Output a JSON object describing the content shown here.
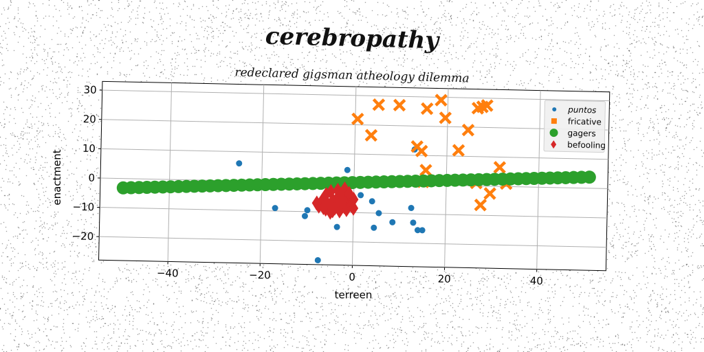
{
  "chart_data": {
    "type": "scatter",
    "title": "cerebropathy",
    "subtitle": "redeclared gigsman atheology dilemma",
    "xlabel": "terreen",
    "ylabel": "enactment",
    "xlim": [
      -55,
      55
    ],
    "ylim": [
      -28,
      33
    ],
    "xticks": [
      -40,
      -20,
      0,
      20,
      40
    ],
    "yticks": [
      -20,
      -10,
      0,
      10,
      20,
      30
    ],
    "grid": true,
    "legend_position": "top-right",
    "series": [
      {
        "name": "puntos",
        "marker": "circle",
        "color": "#1f77b4",
        "points": [
          [
            -25,
            6
          ],
          [
            -17,
            -9
          ],
          [
            -10,
            -9.5
          ],
          [
            -10.5,
            -11.5
          ],
          [
            -7.5,
            -26.5
          ],
          [
            -3.5,
            -15
          ],
          [
            -1.5,
            4.5
          ],
          [
            -0.5,
            -5
          ],
          [
            1.5,
            -4
          ],
          [
            4,
            -6
          ],
          [
            4.5,
            -15
          ],
          [
            5.5,
            -10
          ],
          [
            8.5,
            -13
          ],
          [
            12.5,
            -8
          ],
          [
            13,
            -13
          ],
          [
            13,
            12
          ],
          [
            14,
            -15.5
          ],
          [
            15,
            -15.5
          ]
        ]
      },
      {
        "name": "fricative",
        "marker": "x",
        "color": "#ff7f0e",
        "points": [
          [
            0.5,
            22
          ],
          [
            3.5,
            16.5
          ],
          [
            5,
            27
          ],
          [
            9.5,
            27
          ],
          [
            13.5,
            13
          ],
          [
            14.5,
            11.5
          ],
          [
            15.5,
            26
          ],
          [
            15.5,
            5
          ],
          [
            15,
            1
          ],
          [
            18.5,
            29
          ],
          [
            19.5,
            23
          ],
          [
            22.5,
            12
          ],
          [
            24.5,
            19
          ],
          [
            26.5,
            26.5
          ],
          [
            26.5,
            1
          ],
          [
            27.5,
            27
          ],
          [
            27.5,
            -6.5
          ],
          [
            28.5,
            27.5
          ],
          [
            29.5,
            -2.5
          ],
          [
            31.5,
            6.5
          ],
          [
            33,
            1
          ]
        ]
      },
      {
        "name": "gagers",
        "marker": "circle-large",
        "color": "#2ca02c",
        "line": {
          "x_start": -50,
          "x_end": 51,
          "y_start": -3.2,
          "y_end": 3.8,
          "count": 60
        }
      },
      {
        "name": "befooling",
        "marker": "diamond",
        "color": "#d62728",
        "points": [
          [
            -7.5,
            -8
          ],
          [
            -7,
            -6.5
          ],
          [
            -6.5,
            -5.5
          ],
          [
            -6,
            -9
          ],
          [
            -6,
            -4
          ],
          [
            -5.5,
            -7.5
          ],
          [
            -5,
            -3
          ],
          [
            -5,
            -10
          ],
          [
            -4.5,
            -6
          ],
          [
            -4,
            -8.5
          ],
          [
            -3.5,
            -5
          ],
          [
            -3.5,
            -2.5
          ],
          [
            -3,
            -9.5
          ],
          [
            -3,
            -7
          ],
          [
            -2.5,
            -4.5
          ],
          [
            -2,
            -8
          ],
          [
            -2,
            -2
          ],
          [
            -1.5,
            -6
          ],
          [
            -1.5,
            -9
          ],
          [
            -1,
            -4
          ],
          [
            -1,
            -3.5
          ],
          [
            -0.5,
            -7.5
          ],
          [
            0,
            -5.5
          ],
          [
            0,
            -8.5
          ],
          [
            -8,
            -7
          ],
          [
            -4.5,
            -9.5
          ],
          [
            -2.5,
            -6.5
          ],
          [
            -6.5,
            -8.5
          ]
        ]
      }
    ]
  }
}
